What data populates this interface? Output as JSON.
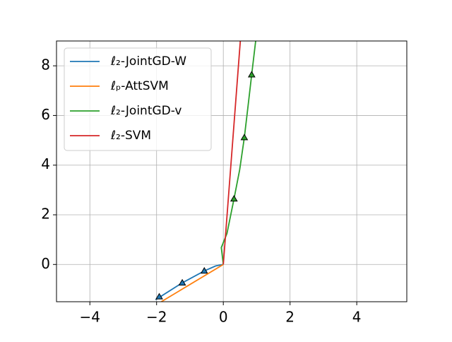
{
  "chart_data": {
    "type": "line",
    "xlim": [
      -5,
      5.5
    ],
    "ylim": [
      -1.5,
      9
    ],
    "xticks": [
      {
        "value": -4,
        "label": "−4"
      },
      {
        "value": -2,
        "label": "−2"
      },
      0,
      2,
      4
    ],
    "yticks": [
      0,
      2,
      4,
      6,
      8
    ],
    "grid": true,
    "legend": "upper-left",
    "series": [
      {
        "name": "ℓ₂-JointGD-W",
        "color": "#1f77b4",
        "x": [
          -2.03,
          -1.23,
          -0.57,
          -0.23,
          0
        ],
        "values": [
          -1.42,
          -0.74,
          -0.26,
          -0.06,
          0
        ],
        "markers": {
          "x": [
            -1.92,
            -1.23,
            -0.57
          ],
          "y": [
            -1.3,
            -0.74,
            -0.26
          ]
        }
      },
      {
        "name": "ℓₚ-AttSVM",
        "color": "#ff7f0e",
        "x": [
          -1.86,
          0
        ],
        "values": [
          -1.5,
          0
        ]
      },
      {
        "name": "ℓ₂-JointGD-v",
        "color": "#2ca02c",
        "x": [
          0,
          -0.06,
          0.11,
          0.32,
          0.49,
          0.63,
          0.74,
          0.85,
          0.97
        ],
        "values": [
          0,
          0.68,
          1.25,
          2.64,
          3.81,
          5.11,
          6.36,
          7.64,
          9
        ],
        "markers": {
          "x": [
            0.32,
            0.63,
            0.85
          ],
          "y": [
            2.64,
            5.11,
            7.64
          ]
        }
      },
      {
        "name": "ℓ₂-SVM",
        "color": "#d62728",
        "x": [
          0,
          0.51
        ],
        "values": [
          0,
          9
        ]
      }
    ]
  }
}
